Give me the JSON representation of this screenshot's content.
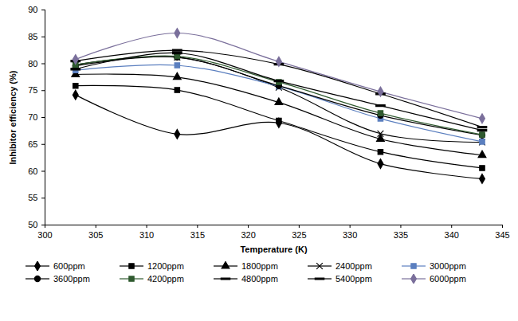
{
  "chart_data": {
    "type": "line",
    "x_label": "Temperature (K)",
    "y_label": "Inhibitor efficiency (%)",
    "x": [
      303,
      313,
      323,
      333,
      343
    ],
    "xlim": [
      300,
      345
    ],
    "xticks": [
      300,
      305,
      310,
      315,
      320,
      325,
      330,
      335,
      340,
      345
    ],
    "ylim": [
      50,
      90
    ],
    "yticks": [
      50,
      55,
      60,
      65,
      70,
      75,
      80,
      85,
      90
    ],
    "grid": false,
    "legend": "bottom",
    "line_style": "smooth",
    "series": [
      {
        "name": "600ppm",
        "color": "#000000",
        "marker": "diamond",
        "values": [
          74.2,
          66.9,
          69.0,
          61.4,
          58.6
        ]
      },
      {
        "name": "1200ppm",
        "color": "#000000",
        "marker": "square",
        "values": [
          75.9,
          75.1,
          69.4,
          63.6,
          60.6
        ]
      },
      {
        "name": "1800ppm",
        "color": "#000000",
        "marker": "triangle",
        "values": [
          78.0,
          77.5,
          72.8,
          66.0,
          63.0
        ]
      },
      {
        "name": "2400ppm",
        "color": "#000000",
        "marker": "x",
        "values": [
          79.8,
          81.2,
          75.6,
          67.0,
          65.4
        ]
      },
      {
        "name": "3000ppm",
        "color": "#5b7fbf",
        "marker": "square",
        "values": [
          78.8,
          79.7,
          75.8,
          69.8,
          65.5
        ]
      },
      {
        "name": "3600ppm",
        "color": "#000000",
        "marker": "circle",
        "values": [
          79.6,
          81.2,
          75.9,
          70.4,
          66.7
        ]
      },
      {
        "name": "4200ppm",
        "color": "#2f5a2f",
        "marker": "square",
        "values": [
          79.8,
          81.4,
          76.6,
          70.8,
          66.8
        ]
      },
      {
        "name": "4800ppm",
        "color": "#000000",
        "marker": "dash",
        "values": [
          79.0,
          82.0,
          76.8,
          72.2,
          67.6
        ]
      },
      {
        "name": "5400ppm",
        "color": "#000000",
        "marker": "dash",
        "values": [
          80.5,
          82.5,
          79.9,
          74.4,
          68.2
        ]
      },
      {
        "name": "6000ppm",
        "color": "#7a6f9b",
        "marker": "diamond",
        "values": [
          80.8,
          85.7,
          80.4,
          74.8,
          69.8
        ]
      }
    ]
  }
}
